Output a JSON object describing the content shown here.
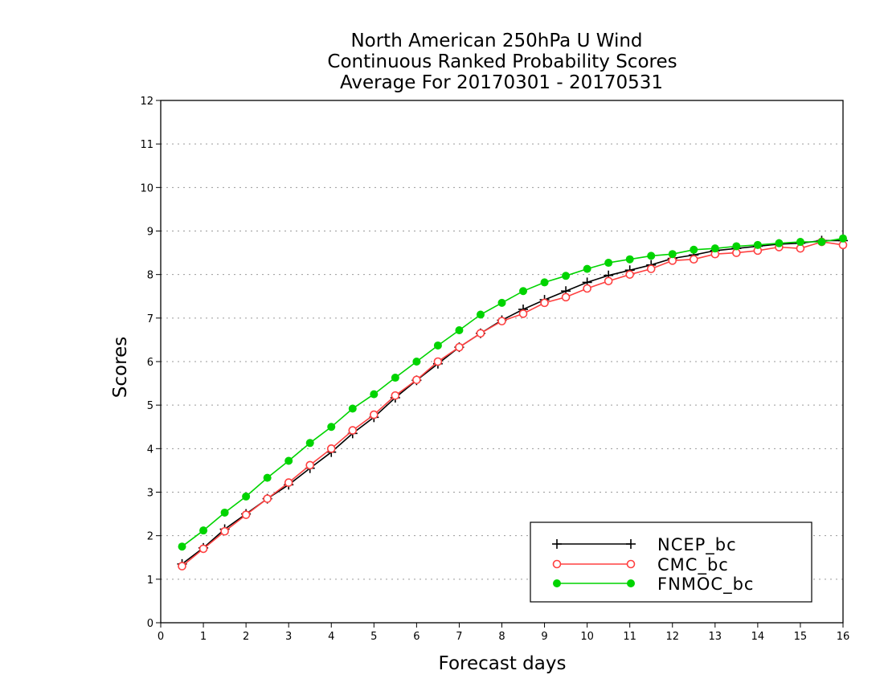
{
  "chart_data": {
    "type": "line",
    "title": [
      "North American 250hPa U Wind",
      "Continuous Ranked Probability Scores",
      "Average For 20170301 - 20170531"
    ],
    "xlabel": "Forecast days",
    "ylabel": "Scores",
    "xlim": [
      0,
      16
    ],
    "ylim": [
      0,
      12
    ],
    "xticks": [
      "0",
      "1",
      "2",
      "3",
      "4",
      "5",
      "6",
      "7",
      "8",
      "9",
      "10",
      "11",
      "12",
      "13",
      "14",
      "15",
      "16"
    ],
    "yticks": [
      "0",
      "1",
      "2",
      "3",
      "4",
      "5",
      "6",
      "7",
      "8",
      "9",
      "10",
      "11",
      "12"
    ],
    "grid": "horizontal dotted",
    "legend_position": "bottom-right",
    "x": [
      0.5,
      1,
      1.5,
      2,
      2.5,
      3,
      3.5,
      4,
      4.5,
      5,
      5.5,
      6,
      6.5,
      7,
      7.5,
      8,
      8.5,
      9,
      9.5,
      10,
      10.5,
      11,
      11.5,
      12,
      12.5,
      13,
      13.5,
      14,
      14.5,
      15,
      15.5,
      16
    ],
    "series": [
      {
        "name": "NCEP_bc",
        "color": "#000000",
        "marker": "plus",
        "values": [
          1.35,
          1.72,
          2.15,
          2.5,
          2.85,
          3.17,
          3.55,
          3.92,
          4.35,
          4.72,
          5.17,
          5.57,
          5.95,
          6.33,
          6.65,
          6.95,
          7.2,
          7.42,
          7.62,
          7.82,
          7.98,
          8.1,
          8.22,
          8.37,
          8.45,
          8.55,
          8.6,
          8.65,
          8.7,
          8.72,
          8.78,
          8.78
        ]
      },
      {
        "name": "CMC_bc",
        "color": "#ff4040",
        "marker": "open-circle",
        "values": [
          1.3,
          1.7,
          2.1,
          2.48,
          2.85,
          3.22,
          3.62,
          4.0,
          4.42,
          4.78,
          5.22,
          5.58,
          6.0,
          6.33,
          6.65,
          6.93,
          7.1,
          7.35,
          7.48,
          7.68,
          7.85,
          8.0,
          8.13,
          8.32,
          8.35,
          8.47,
          8.5,
          8.55,
          8.63,
          8.6,
          8.75,
          8.68
        ]
      },
      {
        "name": "FNMOC_bc",
        "color": "#00d400",
        "marker": "filled-circle",
        "values": [
          1.75,
          2.12,
          2.53,
          2.9,
          3.33,
          3.72,
          4.13,
          4.5,
          4.92,
          5.25,
          5.63,
          6.0,
          6.37,
          6.72,
          7.08,
          7.35,
          7.62,
          7.82,
          7.97,
          8.13,
          8.27,
          8.35,
          8.43,
          8.47,
          8.57,
          8.6,
          8.65,
          8.68,
          8.72,
          8.75,
          8.75,
          8.83
        ]
      }
    ]
  }
}
